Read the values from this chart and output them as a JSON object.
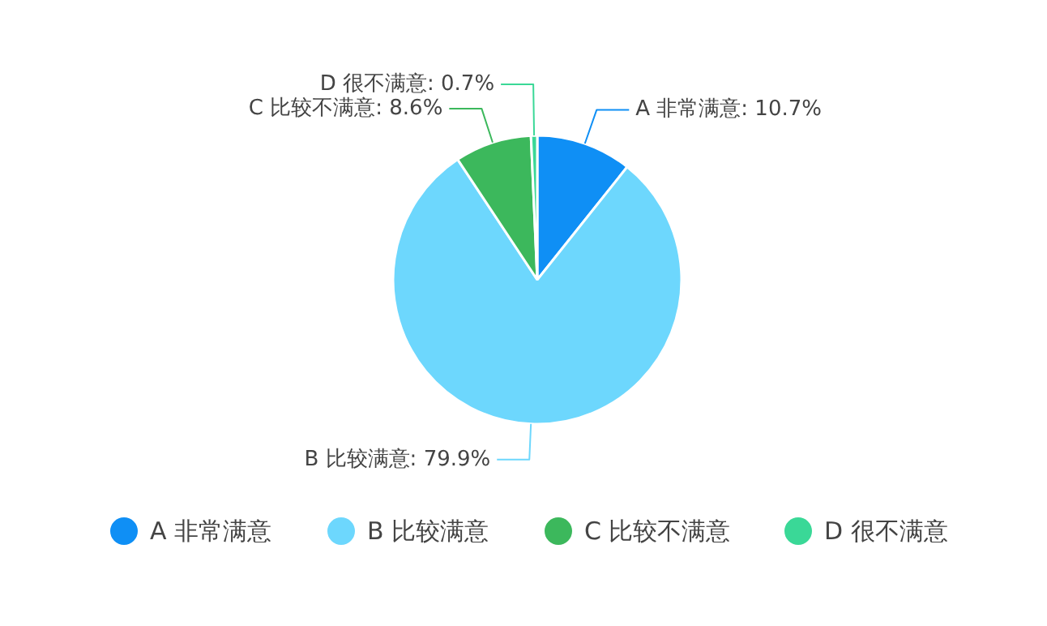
{
  "chart_data": {
    "type": "pie",
    "categories": [
      "A 非常满意",
      "B 比较满意",
      "C 比较不满意",
      "D 很不满意"
    ],
    "values": [
      10.7,
      79.9,
      8.6,
      0.7
    ],
    "value_labels": [
      "A 非常满意: 10.7%",
      "B 比较满意: 79.9%",
      "C 比较不满意: 8.6%",
      "D 很不满意: 0.7%"
    ],
    "colors": [
      "#0f8ff5",
      "#6dd7fd",
      "#3cb85c",
      "#3ad897"
    ],
    "legend": "bottom"
  }
}
